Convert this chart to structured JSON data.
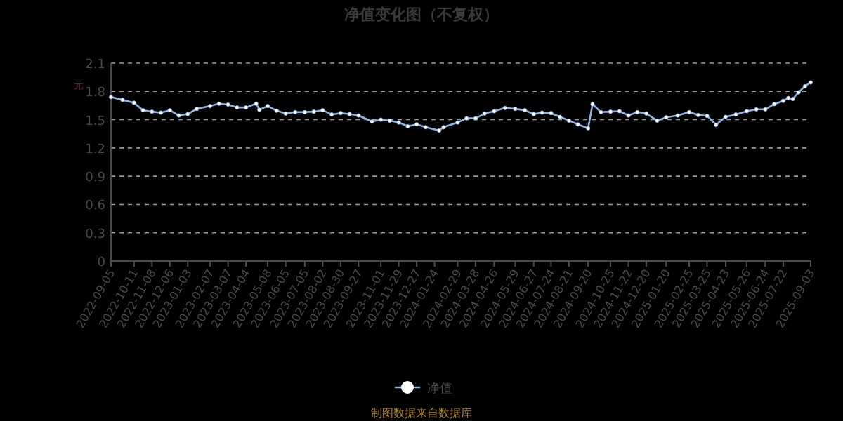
{
  "chart_data": {
    "type": "line",
    "title": "净值变化图（不复权）",
    "ylabel": "元",
    "x": [
      "2022-09-05",
      "2022-09-23",
      "2022-10-11",
      "2022-10-25",
      "2022-11-08",
      "2022-11-22",
      "2022-12-06",
      "2022-12-20",
      "2023-01-03",
      "2023-01-17",
      "2023-02-07",
      "2023-02-21",
      "2023-03-07",
      "2023-03-21",
      "2023-04-04",
      "2023-04-20",
      "2023-04-25",
      "2023-05-08",
      "2023-05-22",
      "2023-06-05",
      "2023-06-20",
      "2023-07-05",
      "2023-07-19",
      "2023-08-02",
      "2023-08-16",
      "2023-08-30",
      "2023-09-13",
      "2023-09-27",
      "2023-10-18",
      "2023-11-01",
      "2023-11-15",
      "2023-11-29",
      "2023-12-13",
      "2023-12-27",
      "2024-01-10",
      "2024-01-31",
      "2024-02-07",
      "2024-02-29",
      "2024-03-14",
      "2024-03-28",
      "2024-04-11",
      "2024-04-26",
      "2024-05-13",
      "2024-05-29",
      "2024-06-13",
      "2024-06-27",
      "2024-07-10",
      "2024-07-24",
      "2024-08-07",
      "2024-08-21",
      "2024-09-04",
      "2024-09-20",
      "2024-09-27",
      "2024-10-10",
      "2024-10-25",
      "2024-11-08",
      "2024-11-22",
      "2024-12-06",
      "2024-12-20",
      "2025-01-06",
      "2025-01-20",
      "2025-02-07",
      "2025-02-25",
      "2025-03-11",
      "2025-03-25",
      "2025-04-08",
      "2025-04-23",
      "2025-05-09",
      "2025-05-26",
      "2025-06-10",
      "2025-06-24",
      "2025-07-08",
      "2025-07-22",
      "2025-07-30",
      "2025-08-06",
      "2025-08-15",
      "2025-08-25",
      "2025-09-03"
    ],
    "series": [
      {
        "name": "净值",
        "color": "#8cb4e6",
        "values": [
          1.74,
          1.71,
          1.68,
          1.6,
          1.585,
          1.575,
          1.6,
          1.545,
          1.56,
          1.615,
          1.645,
          1.67,
          1.66,
          1.63,
          1.63,
          1.67,
          1.605,
          1.645,
          1.595,
          1.565,
          1.58,
          1.58,
          1.585,
          1.6,
          1.555,
          1.57,
          1.56,
          1.545,
          1.48,
          1.5,
          1.49,
          1.47,
          1.43,
          1.45,
          1.42,
          1.385,
          1.42,
          1.47,
          1.515,
          1.515,
          1.565,
          1.59,
          1.625,
          1.615,
          1.6,
          1.56,
          1.575,
          1.57,
          1.53,
          1.49,
          1.45,
          1.41,
          1.665,
          1.58,
          1.585,
          1.59,
          1.545,
          1.58,
          1.565,
          1.49,
          1.525,
          1.545,
          1.58,
          1.55,
          1.54,
          1.445,
          1.53,
          1.555,
          1.59,
          1.61,
          1.61,
          1.665,
          1.7,
          1.73,
          1.72,
          1.79,
          1.855,
          1.895
        ]
      }
    ],
    "xlim": [
      "2022-09-05",
      "2025-09-03"
    ],
    "xticks": [
      "2022-09-05",
      "2022-10-11",
      "2022-11-08",
      "2022-12-06",
      "2023-01-03",
      "2023-02-07",
      "2023-03-07",
      "2023-04-04",
      "2023-05-08",
      "2023-06-05",
      "2023-07-05",
      "2023-08-02",
      "2023-08-30",
      "2023-09-27",
      "2023-11-01",
      "2023-11-29",
      "2023-12-27",
      "2024-01-24",
      "2024-02-29",
      "2024-03-28",
      "2024-04-26",
      "2024-05-29",
      "2024-06-27",
      "2024-07-24",
      "2024-08-21",
      "2024-09-20",
      "2024-10-25",
      "2024-11-22",
      "2024-12-20",
      "2025-01-20",
      "2025-02-25",
      "2025-03-25",
      "2025-04-23",
      "2025-05-26",
      "2025-06-24",
      "2025-07-22",
      "2025-09-03"
    ],
    "ylim": [
      0,
      2.1
    ],
    "yticks": [
      0,
      0.3,
      0.6,
      0.9,
      1.2,
      1.5,
      1.8,
      2.1
    ],
    "grid": "y",
    "legend": "bottom",
    "marker": "circle",
    "annotations": [
      "制图数据来自数据库"
    ]
  }
}
